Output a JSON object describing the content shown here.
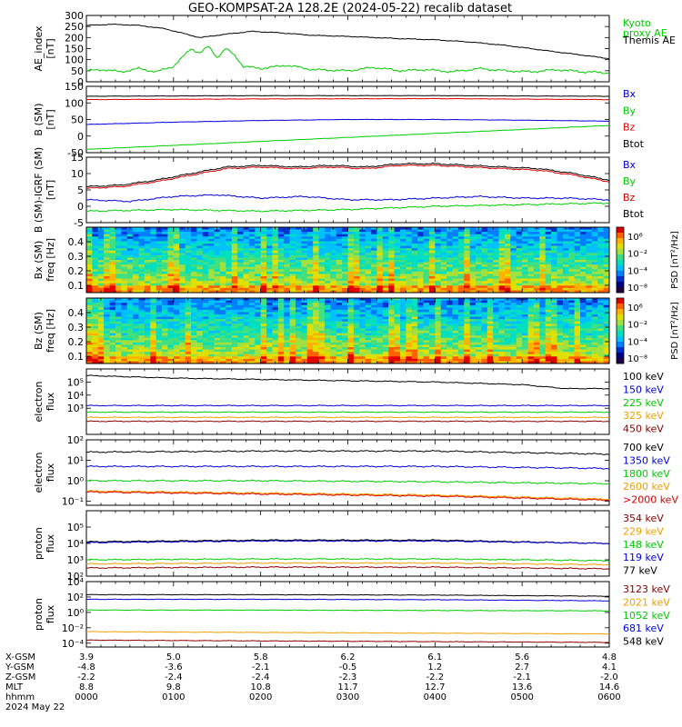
{
  "page": {
    "title": "GEO-KOMPSAT-2A 128.2E (2024-05-22) recalib dataset"
  },
  "colors": {
    "black": "#000000",
    "red": "#dd0000",
    "blue": "#0000dd",
    "green": "#00cc00",
    "orange": "#f0a000",
    "darkred": "#8b0000",
    "teal": "#00a0c0"
  },
  "chart_data": [
    {
      "id": "ae",
      "type": "line",
      "ylabel": "AE_index\n[nT]",
      "ylim": [
        0,
        300
      ],
      "yticks": [
        "300",
        "250",
        "200",
        "150",
        "100",
        "50",
        "0"
      ],
      "legend": [
        {
          "label": "Kyoto\nproxy AE",
          "color": "#00cc00"
        },
        {
          "label": "Themis AE",
          "color": "#000000"
        }
      ],
      "series": [
        {
          "name": "Themis AE",
          "color": "#000000",
          "x": [
            0,
            0.3,
            0.6,
            0.9,
            1.1,
            1.3,
            1.6,
            1.9,
            2.2,
            2.6,
            3.0,
            3.3,
            3.6,
            4.0,
            4.4,
            4.8,
            5.1,
            5.3,
            5.5,
            5.8,
            6.0
          ],
          "y": [
            255,
            260,
            255,
            240,
            220,
            200,
            215,
            228,
            222,
            210,
            205,
            200,
            195,
            190,
            180,
            165,
            150,
            140,
            130,
            115,
            105
          ]
        },
        {
          "name": "Kyoto proxy AE",
          "color": "#00cc00",
          "x": [
            0,
            0.2,
            0.4,
            0.6,
            0.8,
            1.0,
            1.1,
            1.2,
            1.3,
            1.4,
            1.5,
            1.6,
            1.7,
            1.8,
            2.0,
            2.3,
            2.6,
            3.0,
            3.3,
            3.6,
            3.9,
            4.2,
            4.5,
            4.8,
            5.1,
            5.4,
            5.7,
            6.0
          ],
          "y": [
            50,
            55,
            45,
            60,
            45,
            70,
            110,
            150,
            130,
            160,
            110,
            150,
            120,
            70,
            60,
            75,
            55,
            50,
            65,
            50,
            55,
            45,
            60,
            50,
            45,
            55,
            45,
            40
          ]
        }
      ]
    },
    {
      "id": "bsm",
      "type": "line",
      "ylabel": "B (SM)\n[nT]",
      "ylim": [
        -50,
        150
      ],
      "yticks": [
        "150",
        "100",
        "50",
        "0",
        "-50"
      ],
      "legend": [
        {
          "label": "Bx",
          "color": "#0000dd"
        },
        {
          "label": "By",
          "color": "#00cc00"
        },
        {
          "label": "Bz",
          "color": "#dd0000"
        },
        {
          "label": "Btot",
          "color": "#000000"
        }
      ],
      "series": [
        {
          "name": "Btot",
          "color": "#000000",
          "x": [
            0,
            2,
            4,
            6
          ],
          "y": [
            120,
            122,
            122,
            120
          ]
        },
        {
          "name": "Bz",
          "color": "#dd0000",
          "x": [
            0,
            2,
            4,
            6
          ],
          "y": [
            110,
            112,
            113,
            110
          ]
        },
        {
          "name": "Bx",
          "color": "#0000dd",
          "x": [
            0,
            1,
            2,
            3,
            4,
            5,
            6
          ],
          "y": [
            35,
            42,
            47,
            50,
            50,
            48,
            45
          ]
        },
        {
          "name": "By",
          "color": "#00cc00",
          "x": [
            0,
            6
          ],
          "y": [
            -40,
            32
          ]
        }
      ]
    },
    {
      "id": "bigrf",
      "type": "line",
      "ylabel": "B (SM)-IGRF (SM)\n[nT]",
      "ylim": [
        -5,
        15
      ],
      "yticks": [
        "15",
        "10",
        "5",
        "0",
        "-5"
      ],
      "legend": [
        {
          "label": "Bx",
          "color": "#0000dd"
        },
        {
          "label": "By",
          "color": "#00cc00"
        },
        {
          "label": "Bz",
          "color": "#dd0000"
        },
        {
          "label": "Btot",
          "color": "#000000"
        }
      ],
      "series": [
        {
          "name": "Btot",
          "color": "#000000",
          "x": [
            0,
            0.4,
            0.8,
            1.2,
            1.6,
            2.0,
            2.4,
            2.8,
            3.2,
            3.6,
            4.0,
            4.4,
            4.8,
            5.2,
            5.6,
            6.0
          ],
          "y": [
            6,
            6.5,
            8,
            10,
            12,
            12.5,
            12,
            12.5,
            12,
            13,
            13,
            12.5,
            12,
            11.5,
            10,
            8
          ]
        },
        {
          "name": "Bz",
          "color": "#dd0000",
          "x": [
            0,
            0.4,
            0.8,
            1.2,
            1.6,
            2.0,
            2.4,
            2.8,
            3.2,
            3.6,
            4.0,
            4.4,
            4.8,
            5.2,
            5.6,
            6.0
          ],
          "y": [
            5.5,
            6,
            7.5,
            9.5,
            11.5,
            12,
            11.5,
            12,
            11.5,
            12.5,
            12.5,
            12,
            11.5,
            11,
            9.5,
            7.5
          ]
        },
        {
          "name": "Bx",
          "color": "#0000dd",
          "x": [
            0,
            0.5,
            1.0,
            1.5,
            2.0,
            2.5,
            3.0,
            3.5,
            4.0,
            4.5,
            5.0,
            5.5,
            6.0
          ],
          "y": [
            2,
            1.5,
            3,
            3.5,
            2.5,
            3,
            2,
            2,
            2.5,
            3,
            2.5,
            2.5,
            2
          ]
        },
        {
          "name": "By",
          "color": "#00cc00",
          "x": [
            0,
            1,
            2,
            3,
            4,
            5,
            6
          ],
          "y": [
            -1.5,
            -1,
            -1.5,
            -1,
            0,
            0.5,
            1
          ]
        }
      ]
    },
    {
      "id": "bx_spec",
      "type": "heatmap",
      "ylabel": "Bx (SM)\nfreq [Hz]",
      "ylim": [
        0.05,
        0.5
      ],
      "yticks": [
        "0.4",
        "0.3",
        "0.2",
        "0.1"
      ],
      "colorbar": {
        "label": "PSD [nT²/Hz]",
        "ticks": [
          "10⁶",
          "10⁻²",
          "10⁻⁴",
          "10⁻⁸"
        ]
      }
    },
    {
      "id": "bz_spec",
      "type": "heatmap",
      "ylabel": "Bz (SM)\nfreq [Hz]",
      "ylim": [
        0.05,
        0.5
      ],
      "yticks": [
        "0.4",
        "0.3",
        "0.2",
        "0.1"
      ],
      "colorbar": {
        "label": "PSD [nT²/Hz]",
        "ticks": [
          "10⁶",
          "10⁻²",
          "10⁻⁴",
          "10⁻⁸"
        ]
      }
    },
    {
      "id": "eflux_low",
      "type": "line",
      "log": true,
      "ylabel": "electron\nflux",
      "ylim": [
        1,
        6
      ],
      "yticks": [
        "10⁵",
        "10⁴",
        "10³"
      ],
      "legend": [
        {
          "label": "100 keV",
          "color": "#000000"
        },
        {
          "label": "150 keV",
          "color": "#0000dd"
        },
        {
          "label": "225 keV",
          "color": "#00cc00"
        },
        {
          "label": "325 keV",
          "color": "#f0a000"
        },
        {
          "label": "450 keV",
          "color": "#8b0000"
        }
      ],
      "series": [
        {
          "name": "100 keV",
          "color": "#000000",
          "x": [
            0,
            1,
            2,
            3,
            4,
            5,
            5.5,
            6
          ],
          "y": [
            5.5,
            5.3,
            5.2,
            5.1,
            5.0,
            4.8,
            4.5,
            4.5
          ]
        },
        {
          "name": "150 keV",
          "color": "#0000dd",
          "x": [
            0,
            6
          ],
          "y": [
            3.2,
            3.2
          ]
        },
        {
          "name": "225 keV",
          "color": "#00cc00",
          "x": [
            0,
            6
          ],
          "y": [
            2.7,
            2.7
          ]
        },
        {
          "name": "325 keV",
          "color": "#f0a000",
          "x": [
            0,
            6
          ],
          "y": [
            2.3,
            2.3
          ]
        },
        {
          "name": "450 keV",
          "color": "#8b0000",
          "x": [
            0,
            6
          ],
          "y": [
            2.0,
            2.0
          ]
        }
      ]
    },
    {
      "id": "eflux_high",
      "type": "line",
      "log": true,
      "ylabel": "electron\nflux",
      "ylim": [
        -1.2,
        2
      ],
      "yticks": [
        "10²",
        "10¹",
        "10⁰",
        "10⁻¹"
      ],
      "legend": [
        {
          "label": "700 keV",
          "color": "#000000"
        },
        {
          "label": "1350 keV",
          "color": "#0000dd"
        },
        {
          "label": "1800 keV",
          "color": "#00cc00"
        },
        {
          "label": "2600 keV",
          "color": "#f0a000"
        },
        {
          "label": ">2000 keV",
          "color": "#dd0000"
        }
      ],
      "series": [
        {
          "name": "700 keV",
          "color": "#000000",
          "x": [
            0,
            2,
            4,
            6
          ],
          "y": [
            1.4,
            1.45,
            1.45,
            1.3
          ]
        },
        {
          "name": "1350 keV",
          "color": "#0000dd",
          "x": [
            0,
            2,
            4,
            6
          ],
          "y": [
            0.7,
            0.7,
            0.7,
            0.6
          ]
        },
        {
          "name": "1800 keV",
          "color": "#00cc00",
          "x": [
            0,
            2,
            4,
            6
          ],
          "y": [
            0,
            0,
            -0.05,
            -0.15
          ]
        },
        {
          "name": "2600 keV",
          "color": "#f0a000",
          "x": [
            0,
            2,
            4,
            6
          ],
          "y": [
            -0.5,
            -0.6,
            -0.7,
            -0.9
          ]
        },
        {
          "name": ">2000 keV",
          "color": "#dd0000",
          "x": [
            0,
            2,
            4,
            6
          ],
          "y": [
            -0.55,
            -0.65,
            -0.75,
            -0.95
          ]
        }
      ]
    },
    {
      "id": "pflux_low",
      "type": "line",
      "log": true,
      "ylabel": "proton\nflux",
      "ylim": [
        2,
        6
      ],
      "yticks": [
        "10⁵",
        "10⁴",
        "10³",
        "10²"
      ],
      "legend": [
        {
          "label": "354 keV",
          "color": "#8b0000"
        },
        {
          "label": "229 keV",
          "color": "#f0a000"
        },
        {
          "label": "148 keV",
          "color": "#00cc00"
        },
        {
          "label": "119 keV",
          "color": "#0000dd"
        },
        {
          "label": "77 keV",
          "color": "#000000"
        }
      ],
      "series": [
        {
          "name": "77 keV",
          "color": "#000000",
          "x": [
            0,
            2,
            4,
            6
          ],
          "y": [
            4.1,
            4.2,
            4.2,
            4.0
          ]
        },
        {
          "name": "119 keV",
          "color": "#0000dd",
          "x": [
            0,
            2,
            4,
            6
          ],
          "y": [
            4.05,
            4.15,
            4.15,
            4.0
          ]
        },
        {
          "name": "148 keV",
          "color": "#00cc00",
          "x": [
            0,
            2,
            4,
            6
          ],
          "y": [
            3.0,
            3.05,
            3.05,
            2.95
          ]
        },
        {
          "name": "229 keV",
          "color": "#f0a000",
          "x": [
            0,
            2,
            4,
            6
          ],
          "y": [
            2.75,
            2.8,
            2.8,
            2.7
          ]
        },
        {
          "name": "354 keV",
          "color": "#8b0000",
          "x": [
            0,
            2,
            4,
            6
          ],
          "y": [
            2.5,
            2.55,
            2.55,
            2.45
          ]
        }
      ]
    },
    {
      "id": "pflux_high",
      "type": "line",
      "log": true,
      "ylabel": "proton\nflux",
      "ylim": [
        -4.5,
        4
      ],
      "yticks": [
        "10⁴",
        "10²",
        "10⁰",
        "10⁻²",
        "10⁻⁴"
      ],
      "legend": [
        {
          "label": "3123 keV",
          "color": "#8b0000"
        },
        {
          "label": "2021 keV",
          "color": "#f0a000"
        },
        {
          "label": "1052 keV",
          "color": "#00cc00"
        },
        {
          "label": "681 keV",
          "color": "#0000dd"
        },
        {
          "label": "548 keV",
          "color": "#000000"
        }
      ],
      "series": [
        {
          "name": "548 keV",
          "color": "#000000",
          "x": [
            0,
            2,
            4,
            6
          ],
          "y": [
            2.3,
            2.3,
            2.25,
            2.1
          ]
        },
        {
          "name": "681 keV",
          "color": "#0000dd",
          "x": [
            0,
            2,
            4,
            6
          ],
          "y": [
            1.7,
            1.7,
            1.65,
            1.5
          ]
        },
        {
          "name": "1052 keV",
          "color": "#00cc00",
          "x": [
            0,
            2,
            4,
            6
          ],
          "y": [
            0.3,
            0.3,
            0.25,
            0.2
          ]
        },
        {
          "name": "2021 keV",
          "color": "#f0a000",
          "x": [
            0,
            2,
            4,
            6
          ],
          "y": [
            -2.5,
            -2.6,
            -2.7,
            -2.8
          ]
        },
        {
          "name": "3123 keV",
          "color": "#8b0000",
          "x": [
            0,
            2,
            4,
            6
          ],
          "y": [
            -3.6,
            -3.7,
            -3.8,
            -3.9
          ]
        }
      ]
    }
  ],
  "ephemeris": {
    "row_labels": [
      "X-GSM",
      "Y-GSM",
      "Z-GSM",
      "MLT",
      "hhmm",
      "2024 May 22"
    ],
    "columns": [
      {
        "x": "3.9",
        "y": "-4.8",
        "z": "-2.2",
        "mlt": "8.8",
        "hhmm": "0000"
      },
      {
        "x": "5.0",
        "y": "-3.6",
        "z": "-2.4",
        "mlt": "9.8",
        "hhmm": "0100"
      },
      {
        "x": "5.8",
        "y": "-2.1",
        "z": "-2.4",
        "mlt": "10.8",
        "hhmm": "0200"
      },
      {
        "x": "6.2",
        "y": "-0.5",
        "z": "-2.3",
        "mlt": "11.7",
        "hhmm": "0300"
      },
      {
        "x": "6.1",
        "y": "1.2",
        "z": "-2.2",
        "mlt": "12.7",
        "hhmm": "0400"
      },
      {
        "x": "5.6",
        "y": "2.7",
        "z": "-2.1",
        "mlt": "13.6",
        "hhmm": "0500"
      },
      {
        "x": "4.8",
        "y": "4.1",
        "z": "-2.0",
        "mlt": "14.6",
        "hhmm": "0600"
      }
    ]
  }
}
